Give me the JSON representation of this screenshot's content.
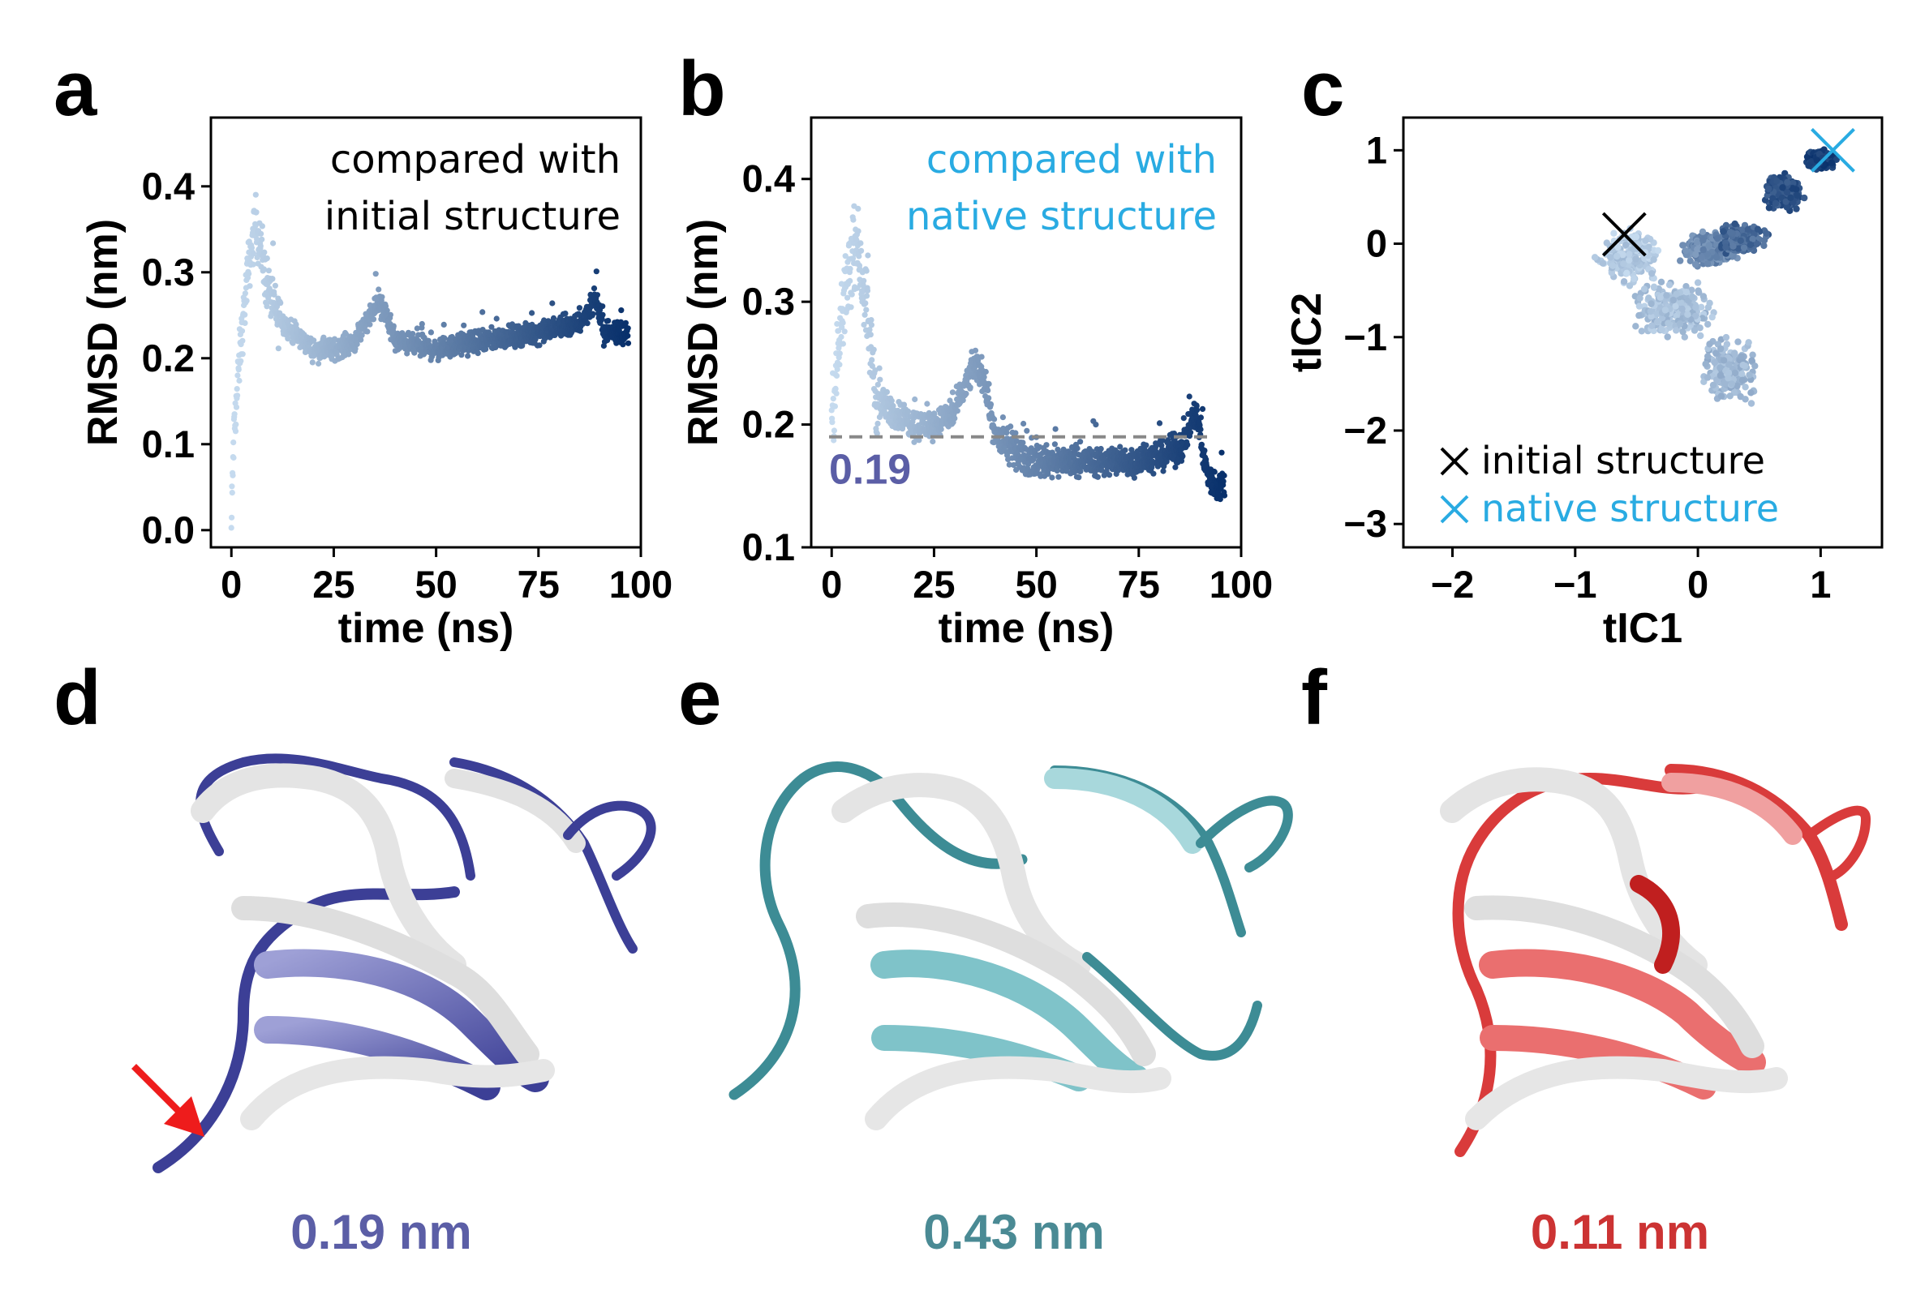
{
  "panel_letters": {
    "a": "a",
    "b": "b",
    "c": "c",
    "d": "d",
    "e": "e",
    "f": "f"
  },
  "chart_data": [
    {
      "id": "a",
      "type": "scatter",
      "xlabel": "time (ns)",
      "ylabel": "RMSD (nm)",
      "xlim": [
        -5,
        100
      ],
      "ylim": [
        -0.02,
        0.48
      ],
      "xticks": [
        0,
        25,
        50,
        75,
        100
      ],
      "yticks": [
        0.0,
        0.1,
        0.2,
        0.3,
        0.4
      ],
      "ytick_labels": [
        "0.0",
        "0.1",
        "0.2",
        "0.3",
        "0.4"
      ],
      "annotation": [
        "compared with",
        "initial structure"
      ],
      "annotation_color": "#000000",
      "color_start": "#c6dbef",
      "color_end": "#08306b",
      "trend": [
        [
          0,
          0.0
        ],
        [
          0.5,
          0.1
        ],
        [
          2,
          0.2
        ],
        [
          4,
          0.3
        ],
        [
          6,
          0.36
        ],
        [
          8,
          0.3
        ],
        [
          11,
          0.25
        ],
        [
          15,
          0.23
        ],
        [
          20,
          0.21
        ],
        [
          25,
          0.21
        ],
        [
          30,
          0.22
        ],
        [
          35,
          0.26
        ],
        [
          37,
          0.26
        ],
        [
          40,
          0.22
        ],
        [
          50,
          0.21
        ],
        [
          60,
          0.22
        ],
        [
          75,
          0.23
        ],
        [
          85,
          0.24
        ],
        [
          89,
          0.27
        ],
        [
          91,
          0.23
        ],
        [
          97,
          0.23
        ]
      ]
    },
    {
      "id": "b",
      "type": "scatter",
      "xlabel": "time (ns)",
      "ylabel": "RMSD (nm)",
      "xlim": [
        -5,
        100
      ],
      "ylim": [
        0.1,
        0.45
      ],
      "xticks": [
        0,
        25,
        50,
        75,
        100
      ],
      "yticks": [
        0.1,
        0.2,
        0.3,
        0.4
      ],
      "ytick_labels": [
        "0.1",
        "0.2",
        "0.3",
        "0.4"
      ],
      "annotation": [
        "compared with",
        "native structure"
      ],
      "annotation_color": "#29abe2",
      "reference_line": {
        "y": 0.19,
        "label": "0.19",
        "label_color": "#5b5ea6"
      },
      "color_start": "#c6dbef",
      "color_end": "#08306b",
      "trend": [
        [
          0,
          0.2
        ],
        [
          2,
          0.27
        ],
        [
          4,
          0.32
        ],
        [
          6,
          0.35
        ],
        [
          8,
          0.31
        ],
        [
          11,
          0.22
        ],
        [
          15,
          0.21
        ],
        [
          20,
          0.2
        ],
        [
          25,
          0.2
        ],
        [
          30,
          0.21
        ],
        [
          35,
          0.25
        ],
        [
          37,
          0.24
        ],
        [
          40,
          0.19
        ],
        [
          48,
          0.17
        ],
        [
          55,
          0.17
        ],
        [
          65,
          0.17
        ],
        [
          75,
          0.17
        ],
        [
          85,
          0.18
        ],
        [
          89,
          0.21
        ],
        [
          91,
          0.17
        ],
        [
          93,
          0.15
        ],
        [
          96,
          0.15
        ]
      ]
    },
    {
      "id": "c",
      "type": "scatter",
      "xlabel": "tIC1",
      "ylabel": "tIC2",
      "xlim": [
        -2.4,
        1.5
      ],
      "ylim": [
        -3.25,
        1.35
      ],
      "xticks": [
        -2,
        -1,
        0,
        1
      ],
      "xtick_labels": [
        "−2",
        "−1",
        "0",
        "1"
      ],
      "yticks": [
        -3,
        -2,
        -1,
        0,
        1
      ],
      "ytick_labels": [
        "−3",
        "−2",
        "−1",
        "0",
        "1"
      ],
      "markers": [
        {
          "x": -0.6,
          "y": 0.1,
          "color": "#000000"
        },
        {
          "x": 1.1,
          "y": 1.0,
          "color": "#29abe2"
        }
      ],
      "legend": [
        {
          "label": "initial structure",
          "color": "#000000"
        },
        {
          "label": "native structure",
          "color": "#29abe2"
        }
      ],
      "legend_position": "lower-left",
      "color_start": "#c6dbef",
      "color_end": "#08306b"
    }
  ],
  "structures": [
    {
      "id": "d",
      "value_label": "0.19 nm",
      "color": "#5b5ea6",
      "ribbon": "#3c3f96"
    },
    {
      "id": "e",
      "value_label": "0.43 nm",
      "color": "#4a8a94",
      "ribbon": "#3d8c95"
    },
    {
      "id": "f",
      "value_label": "0.11 nm",
      "color": "#cc3333",
      "ribbon": "#d93b3b"
    }
  ]
}
